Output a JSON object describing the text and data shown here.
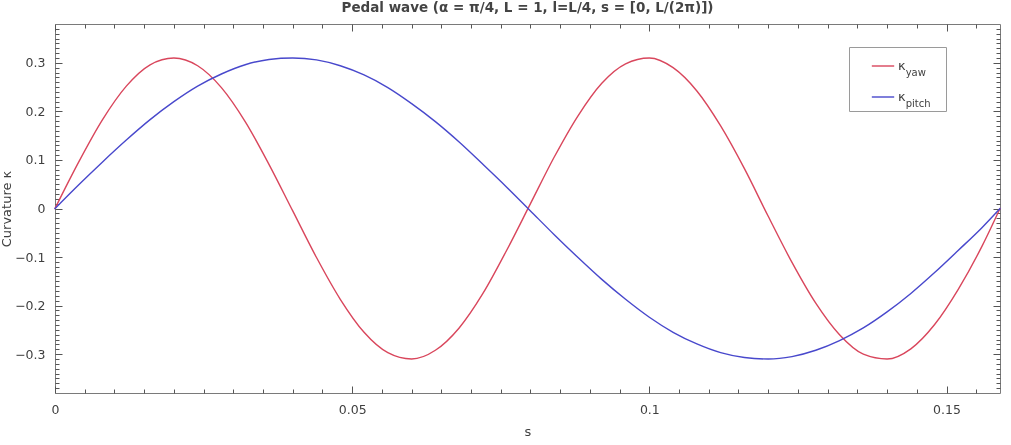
{
  "chart_data": {
    "type": "line",
    "title": "Pedal wave (α = π/4, L = 1, l=L/4, s = [0, L/(2π)])",
    "xlabel": "s",
    "ylabel": "Curvature κ",
    "x": [
      0,
      0.004,
      0.008,
      0.012,
      0.016,
      0.02,
      0.024,
      0.028,
      0.032,
      0.036,
      0.04,
      0.044,
      0.048,
      0.052,
      0.056,
      0.06,
      0.064,
      0.068,
      0.072,
      0.076,
      0.08,
      0.084,
      0.088,
      0.092,
      0.096,
      0.1,
      0.104,
      0.108,
      0.112,
      0.116,
      0.12,
      0.124,
      0.128,
      0.132,
      0.136,
      0.14,
      0.144,
      0.148,
      0.152,
      0.156,
      0.159
    ],
    "series": [
      {
        "name": "κ$_{yaw}$",
        "color": "#d9465c",
        "values": [
          0,
          0.096,
          0.183,
          0.252,
          0.296,
          0.31,
          0.294,
          0.249,
          0.179,
          0.091,
          -0.005,
          -0.101,
          -0.187,
          -0.255,
          -0.297,
          -0.31,
          -0.292,
          -0.246,
          -0.175,
          -0.086,
          0.01,
          0.106,
          0.191,
          0.258,
          0.298,
          0.31,
          0.29,
          0.242,
          0.17,
          0.082,
          -0.016,
          -0.111,
          -0.195,
          -0.26,
          -0.3,
          -0.31,
          -0.289,
          -0.239,
          -0.166,
          -0.077,
          0
        ]
      },
      {
        "name": "κ$_{pitch}$",
        "color": "#4848cc",
        "values": [
          0,
          0.049,
          0.096,
          0.141,
          0.183,
          0.22,
          0.252,
          0.277,
          0.296,
          0.307,
          0.31,
          0.306,
          0.294,
          0.275,
          0.249,
          0.216,
          0.179,
          0.137,
          0.091,
          0.044,
          -0.005,
          -0.054,
          -0.101,
          -0.146,
          -0.187,
          -0.224,
          -0.255,
          -0.279,
          -0.297,
          -0.307,
          -0.31,
          -0.305,
          -0.292,
          -0.272,
          -0.246,
          -0.213,
          -0.175,
          -0.132,
          -0.086,
          -0.039,
          0
        ]
      }
    ],
    "xlim": [
      0,
      0.159
    ],
    "ylim": [
      -0.38,
      0.38
    ],
    "xticks": [
      0,
      {
        "value": 0.005,
        "label": null
      },
      {
        "value": 0.01,
        "label": null
      },
      {
        "value": 0.015,
        "label": null
      },
      {
        "value": 0.02,
        "label": null
      },
      {
        "value": 0.025,
        "label": null
      },
      {
        "value": 0.03,
        "label": null
      },
      {
        "value": 0.035,
        "label": null
      },
      {
        "value": 0.04,
        "label": null
      },
      {
        "value": 0.045,
        "label": null
      },
      0.05,
      {
        "value": 0.055,
        "label": null
      },
      {
        "value": 0.06,
        "label": null
      },
      {
        "value": 0.065,
        "label": null
      },
      {
        "value": 0.07,
        "label": null
      },
      {
        "value": 0.075,
        "label": null
      },
      {
        "value": 0.08,
        "label": null
      },
      {
        "value": 0.085,
        "label": null
      },
      {
        "value": 0.09,
        "label": null
      },
      {
        "value": 0.095,
        "label": null
      },
      0.1,
      {
        "value": 0.105,
        "label": null
      },
      {
        "value": 0.11,
        "label": null
      },
      {
        "value": 0.115,
        "label": null
      },
      {
        "value": 0.12,
        "label": null
      },
      {
        "value": 0.125,
        "label": null
      },
      {
        "value": 0.13,
        "label": null
      },
      {
        "value": 0.135,
        "label": null
      },
      {
        "value": 0.14,
        "label": null
      },
      {
        "value": 0.145,
        "label": null
      },
      0.15,
      {
        "value": 0.155,
        "label": null
      }
    ],
    "yticks": [
      {
        "value": -0.37,
        "label": null
      },
      {
        "value": -0.36,
        "label": null
      },
      {
        "value": -0.35,
        "label": null
      },
      {
        "value": -0.34,
        "label": null
      },
      {
        "value": -0.33,
        "label": null
      },
      {
        "value": -0.32,
        "label": null
      },
      {
        "value": -0.31,
        "label": null
      },
      -0.3,
      {
        "value": -0.29,
        "label": null
      },
      {
        "value": -0.28,
        "label": null
      },
      {
        "value": -0.27,
        "label": null
      },
      {
        "value": -0.26,
        "label": null
      },
      {
        "value": -0.25,
        "label": null
      },
      {
        "value": -0.24,
        "label": null
      },
      {
        "value": -0.23,
        "label": null
      },
      {
        "value": -0.22,
        "label": null
      },
      {
        "value": -0.21,
        "label": null
      },
      -0.2,
      {
        "value": -0.19,
        "label": null
      },
      {
        "value": -0.18,
        "label": null
      },
      {
        "value": -0.17,
        "label": null
      },
      {
        "value": -0.16,
        "label": null
      },
      {
        "value": -0.15,
        "label": null
      },
      {
        "value": -0.14,
        "label": null
      },
      {
        "value": -0.13,
        "label": null
      },
      {
        "value": -0.12,
        "label": null
      },
      {
        "value": -0.11,
        "label": null
      },
      -0.1,
      {
        "value": -0.09,
        "label": null
      },
      {
        "value": -0.08,
        "label": null
      },
      {
        "value": -0.07,
        "label": null
      },
      {
        "value": -0.06,
        "label": null
      },
      {
        "value": -0.05,
        "label": null
      },
      {
        "value": -0.04,
        "label": null
      },
      {
        "value": -0.03,
        "label": null
      },
      {
        "value": -0.02,
        "label": null
      },
      {
        "value": -0.01,
        "label": null
      },
      0,
      {
        "value": 0.01,
        "label": null
      },
      {
        "value": 0.02,
        "label": null
      },
      {
        "value": 0.03,
        "label": null
      },
      {
        "value": 0.04,
        "label": null
      },
      {
        "value": 0.05,
        "label": null
      },
      {
        "value": 0.06,
        "label": null
      },
      {
        "value": 0.07,
        "label": null
      },
      {
        "value": 0.08,
        "label": null
      },
      {
        "value": 0.09,
        "label": null
      },
      0.1,
      {
        "value": 0.11,
        "label": null
      },
      {
        "value": 0.12,
        "label": null
      },
      {
        "value": 0.13,
        "label": null
      },
      {
        "value": 0.14,
        "label": null
      },
      {
        "value": 0.15,
        "label": null
      },
      {
        "value": 0.16,
        "label": null
      },
      {
        "value": 0.17,
        "label": null
      },
      {
        "value": 0.18,
        "label": null
      },
      {
        "value": 0.19,
        "label": null
      },
      0.2,
      {
        "value": 0.21,
        "label": null
      },
      {
        "value": 0.22,
        "label": null
      },
      {
        "value": 0.23,
        "label": null
      },
      {
        "value": 0.24,
        "label": null
      },
      {
        "value": 0.25,
        "label": null
      },
      {
        "value": 0.26,
        "label": null
      },
      {
        "value": 0.27,
        "label": null
      },
      {
        "value": 0.28,
        "label": null
      },
      {
        "value": 0.29,
        "label": null
      },
      0.3,
      {
        "value": 0.31,
        "label": null
      },
      {
        "value": 0.32,
        "label": null
      },
      {
        "value": 0.33,
        "label": null
      },
      {
        "value": 0.34,
        "label": null
      },
      {
        "value": 0.35,
        "label": null
      },
      {
        "value": 0.36,
        "label": null
      },
      {
        "value": 0.37,
        "label": null
      }
    ],
    "legend": "top right"
  }
}
